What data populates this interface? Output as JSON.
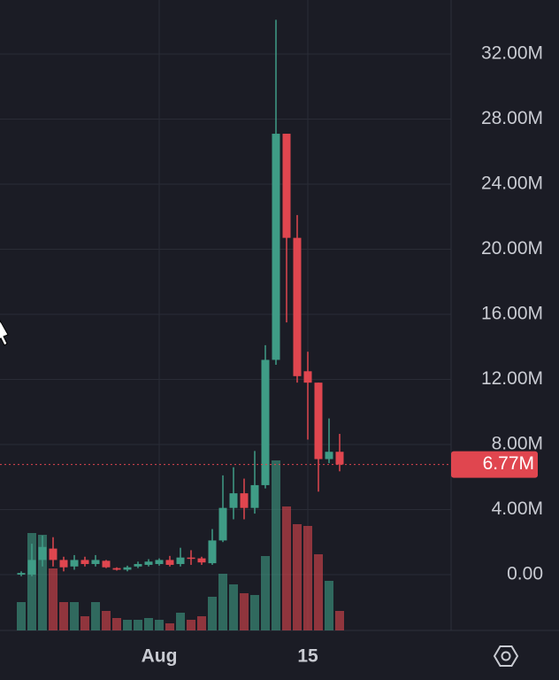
{
  "chart_data": {
    "type": "candlestick",
    "categories": [
      null,
      null,
      null,
      null,
      null,
      null,
      null,
      null,
      null,
      null,
      null,
      null,
      null,
      "Aug",
      null,
      null,
      null,
      null,
      null,
      null,
      null,
      null,
      null,
      null,
      null,
      null,
      null,
      "15",
      null,
      null,
      null
    ],
    "open": [
      0,
      0,
      0.9,
      1.6,
      0.9,
      0.5,
      0.9,
      0.65,
      0.85,
      0.4,
      0.3,
      0.5,
      0.6,
      0.65,
      0.9,
      0.65,
      1.05,
      1.0,
      0.7,
      2.1,
      4.1,
      5.0,
      4.1,
      5.5,
      13.2,
      27.1,
      20.7,
      12.5,
      11.8,
      7.1,
      7.55
    ],
    "high": [
      0.2,
      1.9,
      2.4,
      2.3,
      1.1,
      1.2,
      1.1,
      1.2,
      0.9,
      0.45,
      0.55,
      0.8,
      0.95,
      1.0,
      1.15,
      1.65,
      1.5,
      1.1,
      2.8,
      6.1,
      6.6,
      5.9,
      7.6,
      14.1,
      34.1,
      27.1,
      22.1,
      13.7,
      11.8,
      9.6,
      8.65
    ],
    "low": [
      -0.1,
      -0.1,
      0.5,
      0.5,
      0.2,
      0.3,
      0.5,
      0.5,
      0.4,
      0.25,
      0.2,
      0.4,
      0.5,
      0.55,
      0.5,
      0.5,
      0.6,
      0.6,
      0.6,
      2.0,
      3.4,
      3.4,
      3.75,
      5.3,
      12.9,
      15.5,
      11.8,
      8.3,
      5.1,
      6.85,
      6.35
    ],
    "close": [
      0.1,
      0.9,
      1.7,
      0.9,
      0.45,
      0.9,
      0.65,
      0.9,
      0.45,
      0.3,
      0.45,
      0.65,
      0.8,
      0.9,
      0.6,
      1.05,
      1.0,
      0.75,
      2.1,
      4.1,
      5.0,
      4.1,
      5.5,
      13.2,
      27.1,
      20.7,
      12.2,
      11.8,
      7.1,
      7.55,
      6.77
    ],
    "volume": [
      16,
      55,
      54,
      35,
      16,
      16,
      8,
      16,
      11,
      7,
      6,
      6,
      7,
      6,
      4,
      10,
      6,
      8,
      19,
      32,
      26,
      21,
      20,
      42,
      96,
      70,
      60,
      59,
      43,
      28,
      11
    ],
    "vlim": [
      0,
      100
    ],
    "up_color": "#3f9c86",
    "down_color": "#e0464f",
    "ylim": [
      -3.43,
      35.32
    ],
    "yticks": [
      {
        "value": 0,
        "label": "0.00"
      },
      {
        "value": 4,
        "label": "4.00M"
      },
      {
        "value": 8,
        "label": "8.00M"
      },
      {
        "value": 12,
        "label": "12.00M"
      },
      {
        "value": 16,
        "label": "16.00M"
      },
      {
        "value": 20,
        "label": "20.00M"
      },
      {
        "value": 24,
        "label": "24.00M"
      },
      {
        "value": 28,
        "label": "28.00M"
      },
      {
        "value": 32,
        "label": "32.00M"
      }
    ],
    "last_price": {
      "value": 6.77,
      "label": "6.77M"
    },
    "grid": true
  }
}
